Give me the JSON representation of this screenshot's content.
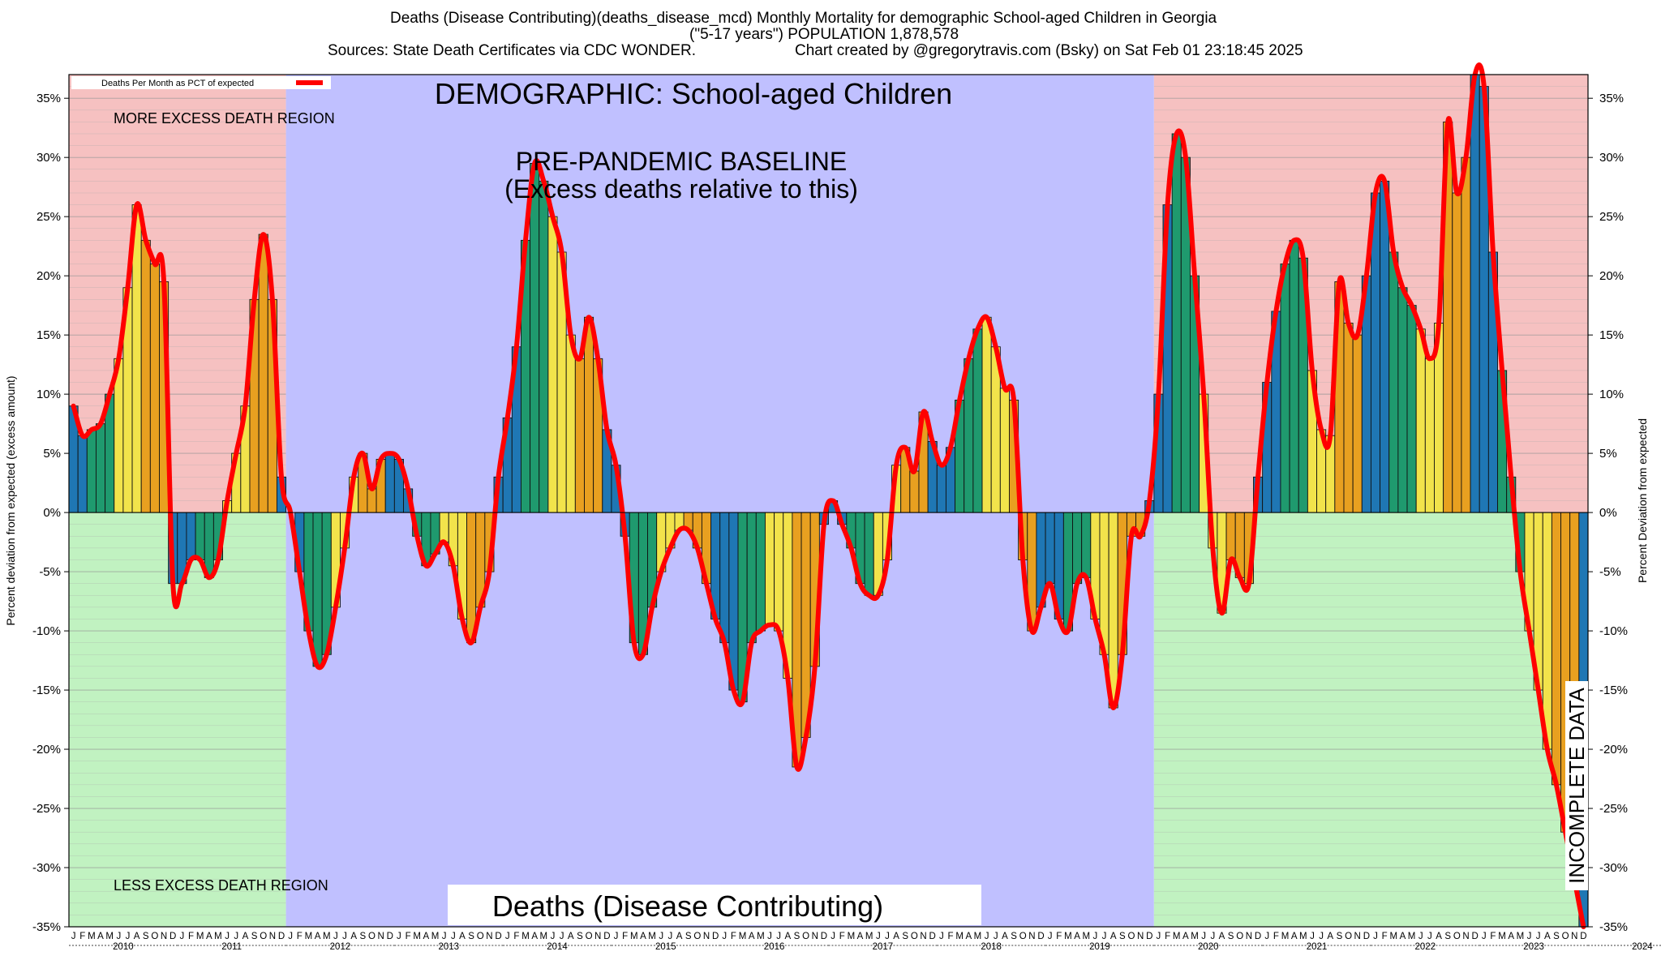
{
  "header": {
    "line1": "Deaths (Disease Contributing)(deaths_disease_mcd) Monthly Mortality for demographic School-aged Children in Georgia",
    "line2": "(\"5-17 years\") POPULATION 1,878,578",
    "line3a": "Sources: State Death Certificates via CDC WONDER.",
    "line3b": "Chart created by @gregorytravis.com (Bsky) on Sat Feb 01 23:18:45 2025"
  },
  "chart_data": {
    "type": "bar",
    "title": "DEMOGRAPHIC: School-aged Children",
    "footer_title": "Deaths (Disease Contributing)",
    "ylabel_left": "Percent deviation from expected (excess amount)",
    "ylabel_right": "Percent Deviation from expected",
    "ylim": [
      -35,
      37
    ],
    "ytick_values": [
      -35,
      -30,
      -25,
      -20,
      -15,
      -10,
      -5,
      0,
      5,
      10,
      15,
      20,
      25,
      30,
      35
    ],
    "ytick_labels": [
      "-35%",
      "-30%",
      "-25%",
      "-20%",
      "-15%",
      "-10%",
      "-5%",
      "0%",
      "5%",
      "10%",
      "15%",
      "20%",
      "25%",
      "30%",
      "35%"
    ],
    "legend": {
      "label": "Deaths Per Month as PCT of expected",
      "position": "top-left",
      "color": "#ff0000"
    },
    "annotations": {
      "more_excess": "MORE EXCESS DEATH REGION",
      "less_excess": "LESS EXCESS DEATH REGION",
      "baseline_1": "PRE-PANDEMIC BASELINE",
      "baseline_2": "(Excess deaths relative to this)",
      "incomplete": "INCOMPLETE DATA"
    },
    "baseline_period": {
      "from": "2012-01",
      "to": "2019-12"
    },
    "incomplete_period": {
      "from": "2024-02",
      "to": "2024-12"
    },
    "month_letters": [
      "J",
      "F",
      "M",
      "A",
      "M",
      "J",
      "J",
      "A",
      "S",
      "O",
      "N",
      "D"
    ],
    "years": [
      "2010",
      "2011",
      "2012",
      "2013",
      "2014",
      "2015",
      "2016",
      "2017",
      "2018",
      "2019",
      "2020",
      "2021",
      "2022",
      "2023",
      "2024"
    ],
    "season_colors": {
      "winter": "#1f77b4",
      "spring": "#1f9a6e",
      "summer": "#f2e34b",
      "fall": "#e8a020"
    },
    "colors": {
      "excess_region": "#f6c1c1",
      "deficit_region": "#c1f2c1",
      "baseline_region": "#c0c0ff",
      "line": "#ff0000"
    },
    "series": [
      {
        "name": "Deaths Per Month as PCT of expected",
        "start": "2010-01",
        "values": [
          9,
          6.5,
          7,
          7.5,
          10,
          13,
          19,
          26,
          23,
          21,
          19.5,
          -6,
          -6,
          -4,
          -4,
          -5.5,
          -4,
          1,
          5,
          9,
          18,
          23.5,
          18,
          3,
          0,
          -5,
          -10,
          -13,
          -12,
          -8,
          -3,
          3,
          5,
          2,
          4.5,
          5,
          4.5,
          2,
          -2,
          -4.5,
          -3.5,
          -2.5,
          -4.5,
          -9,
          -11,
          -8,
          -5,
          3,
          8,
          14,
          23,
          29.5,
          28,
          25,
          22,
          15,
          13,
          16.5,
          13,
          7,
          4,
          -2,
          -11,
          -12,
          -8,
          -5,
          -3,
          -1.5,
          -1.5,
          -3,
          -6,
          -9,
          -11,
          -15,
          -16,
          -11,
          -10,
          -9.5,
          -10,
          -14,
          -21.5,
          -19,
          -13,
          -1,
          1,
          -1,
          -3,
          -6,
          -7,
          -7,
          -4,
          4,
          5.5,
          3.5,
          8.5,
          6,
          4,
          5.5,
          9.5,
          13,
          15.5,
          16.5,
          14,
          10.5,
          9.5,
          -4,
          -10,
          -8,
          -6,
          -9,
          -10,
          -6,
          -5.5,
          -9,
          -12,
          -16.5,
          -12,
          -2,
          -2,
          1,
          10,
          26,
          32,
          30,
          20,
          10,
          -3,
          -8.5,
          -4,
          -5.5,
          -6,
          3,
          11,
          17,
          21,
          23,
          21.5,
          12,
          7,
          6.5,
          19.5,
          16,
          15,
          20,
          27,
          28,
          22,
          19,
          17.5,
          15.5,
          13,
          16,
          33,
          27,
          30,
          37,
          36,
          22,
          12,
          3,
          -5,
          -10,
          -15,
          -20,
          -23,
          -27,
          -31,
          -35
        ]
      }
    ]
  }
}
